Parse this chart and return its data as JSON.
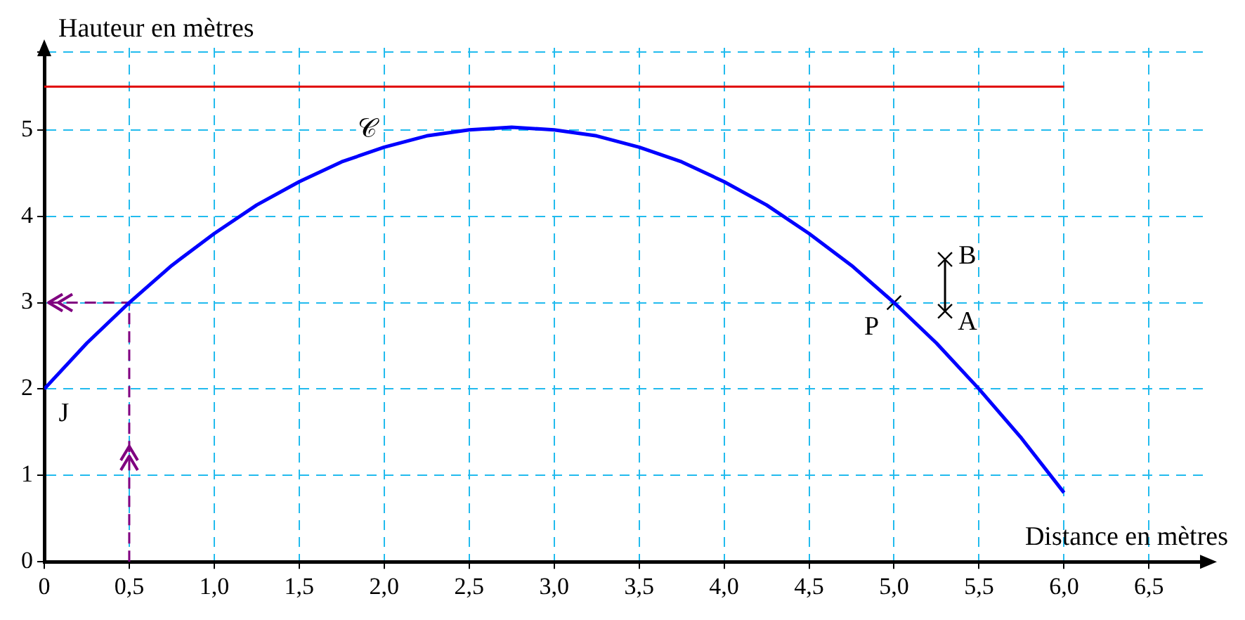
{
  "chart_data": {
    "type": "line",
    "xlabel": "Distance en mètres",
    "ylabel": "Hauteur en mètres",
    "xlim": [
      0,
      6.85
    ],
    "ylim": [
      0,
      5.95
    ],
    "xticks": [
      0,
      {
        "value": 0.5,
        "label": "0,5"
      },
      {
        "value": 1,
        "label": "1,0"
      },
      {
        "value": 1.5,
        "label": "1,5"
      },
      {
        "value": 2,
        "label": "2,0"
      },
      {
        "value": 2.5,
        "label": "2,5"
      },
      {
        "value": 3,
        "label": "3,0"
      },
      {
        "value": 3.5,
        "label": "3,5"
      },
      {
        "value": 4,
        "label": "4,0"
      },
      {
        "value": 4.5,
        "label": "4,5"
      },
      {
        "value": 5,
        "label": "5,0"
      },
      {
        "value": 5.5,
        "label": "5,5"
      },
      {
        "value": 6,
        "label": "6,0"
      },
      {
        "value": 6.5,
        "label": "6,5"
      }
    ],
    "yticks": [
      0,
      1,
      2,
      3,
      4,
      5,
      {
        "value": 5.9,
        "label": null
      }
    ],
    "grid": true,
    "series": [
      {
        "type": "line",
        "color": "#0000ff",
        "line_style": "solid",
        "marker": "none",
        "x": [
          0,
          0.25,
          0.5,
          0.75,
          1,
          1.25,
          1.5,
          1.75,
          2,
          2.25,
          2.5,
          2.75,
          3,
          3.25,
          3.5,
          3.75,
          4,
          4.25,
          4.5,
          4.75,
          5,
          5.25,
          5.5,
          5.75,
          6
        ],
        "values": [
          2.0,
          2.53,
          3.0,
          3.43,
          3.8,
          4.13,
          4.4,
          4.63,
          4.8,
          4.93,
          5.0,
          5.03,
          5.0,
          4.93,
          4.8,
          4.63,
          4.4,
          4.13,
          3.8,
          3.43,
          3.0,
          2.53,
          2.0,
          1.43,
          0.8
        ]
      },
      {
        "type": "line",
        "color": "#e00000",
        "line_style": "solid",
        "marker": "none",
        "x": [
          0,
          6
        ],
        "values": [
          5.5,
          5.5
        ]
      },
      {
        "type": "line",
        "color": "#800080",
        "line_style": "dashed",
        "marker": "none",
        "x": [
          0.5,
          0.5,
          0
        ],
        "values": [
          0,
          3,
          3
        ]
      },
      {
        "type": "line",
        "color": "#000000",
        "line_style": "solid",
        "marker": "none",
        "x": [
          5.3,
          5.3
        ],
        "values": [
          2.9,
          3.5
        ]
      },
      {
        "type": "scatter",
        "color": "#000000",
        "marker": "cross",
        "x": [
          5,
          5.3,
          5.3
        ],
        "values": [
          3,
          2.9,
          3.5
        ]
      }
    ],
    "annotations": [
      {
        "text": "𝒞",
        "x": 2,
        "y": 4.8
      },
      {
        "text": "J",
        "x": 0,
        "y": 2
      },
      {
        "text": "P",
        "x": 5,
        "y": 3
      },
      {
        "text": "A",
        "x": 5.3,
        "y": 2.9
      },
      {
        "text": "B",
        "x": 5.3,
        "y": 3.5
      }
    ]
  }
}
